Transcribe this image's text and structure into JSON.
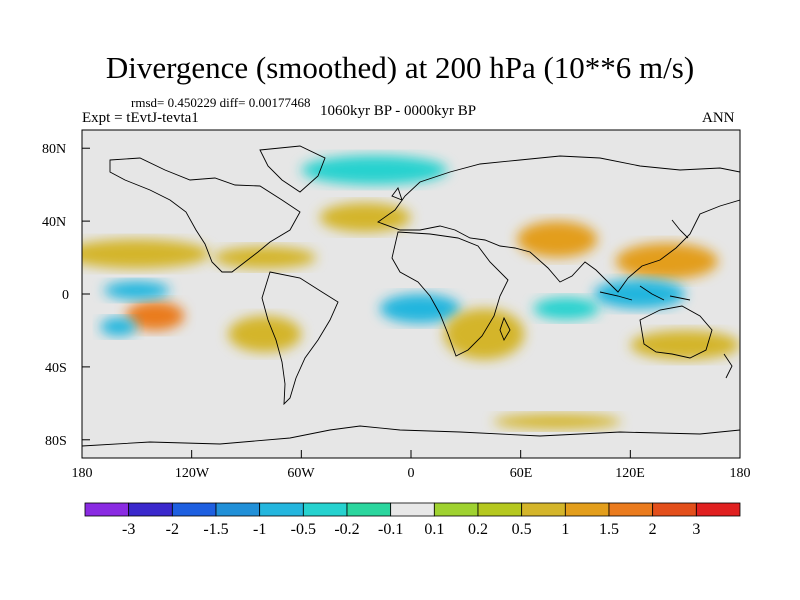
{
  "title": "Divergence (smoothed) at 200 hPa (10**6 m/s)",
  "stats": "rmsd= 0.450229 diff= 0.00177468",
  "experiment": "Expt = tEvtJ-tevta1",
  "period": "1060kyr BP - 0000kyr BP",
  "season": "ANN",
  "map": {
    "lat_ticks": [
      "80N",
      "40N",
      "0",
      "40S",
      "80S"
    ],
    "lon_ticks": [
      "180",
      "120W",
      "60W",
      "0",
      "60E",
      "120E",
      "180"
    ],
    "background": "#e6e6e6",
    "fields": [
      {
        "name": "north-pacific-band",
        "level": "0.5",
        "lon": -150,
        "lat": 22,
        "rx": 40,
        "ry": 8
      },
      {
        "name": "central-pacific-maximum",
        "level": "1.5",
        "lon": -140,
        "lat": -12,
        "rx": 16,
        "ry": 8
      },
      {
        "name": "eastern-pacific-trough",
        "level": "-1",
        "lon": -150,
        "lat": 2,
        "rx": 18,
        "ry": 5
      },
      {
        "name": "south-pacific-trough",
        "level": "-1",
        "lon": -160,
        "lat": -18,
        "rx": 10,
        "ry": 5
      },
      {
        "name": "caribbean-band",
        "level": "0.5",
        "lon": -80,
        "lat": 20,
        "rx": 28,
        "ry": 6
      },
      {
        "name": "south-america-band",
        "level": "0.5",
        "lon": -80,
        "lat": -22,
        "rx": 20,
        "ry": 10
      },
      {
        "name": "africa-trough",
        "level": "-1",
        "lon": 5,
        "lat": -8,
        "rx": 22,
        "ry": 8
      },
      {
        "name": "indian-ocean-band",
        "level": "0.5",
        "lon": 40,
        "lat": -22,
        "rx": 22,
        "ry": 14
      },
      {
        "name": "asia-band",
        "level": "1",
        "lon": 80,
        "lat": 30,
        "rx": 22,
        "ry": 10
      },
      {
        "name": "west-pacific-band",
        "level": "1",
        "lon": 140,
        "lat": 18,
        "rx": 28,
        "ry": 10
      },
      {
        "name": "maritime-continent-trough",
        "level": "-1",
        "lon": 125,
        "lat": 0,
        "rx": 25,
        "ry": 8
      },
      {
        "name": "indian-ocean-trough",
        "level": "-0.5",
        "lon": 85,
        "lat": -8,
        "rx": 18,
        "ry": 6
      },
      {
        "name": "southern-ocean-band",
        "level": "0.5",
        "lon": 150,
        "lat": -28,
        "rx": 30,
        "ry": 8
      },
      {
        "name": "arctic-trough",
        "level": "-0.5",
        "lon": -20,
        "lat": 68,
        "rx": 40,
        "ry": 8
      },
      {
        "name": "north-atlantic-band",
        "level": "0.5",
        "lon": -25,
        "lat": 42,
        "rx": 25,
        "ry": 8
      },
      {
        "name": "antarctic-band",
        "level": "0.5",
        "lon": 80,
        "lat": -70,
        "rx": 35,
        "ry": 4
      }
    ]
  },
  "colorbar": {
    "colors": [
      "#8a2be2",
      "#3b28cc",
      "#1e5fe0",
      "#2190d8",
      "#24b6de",
      "#26d2cf",
      "#2bd69e",
      "#e8e8e8",
      "#9fd230",
      "#b5c81f",
      "#d4b52a",
      "#e39e1c",
      "#ea7b1e",
      "#e34f1b",
      "#e02020"
    ],
    "labels": [
      "-3",
      "-2",
      "-1.5",
      "-1",
      "-0.5",
      "-0.2",
      "-0.1",
      "0.1",
      "0.2",
      "0.5",
      "1",
      "1.5",
      "2",
      "3"
    ]
  }
}
